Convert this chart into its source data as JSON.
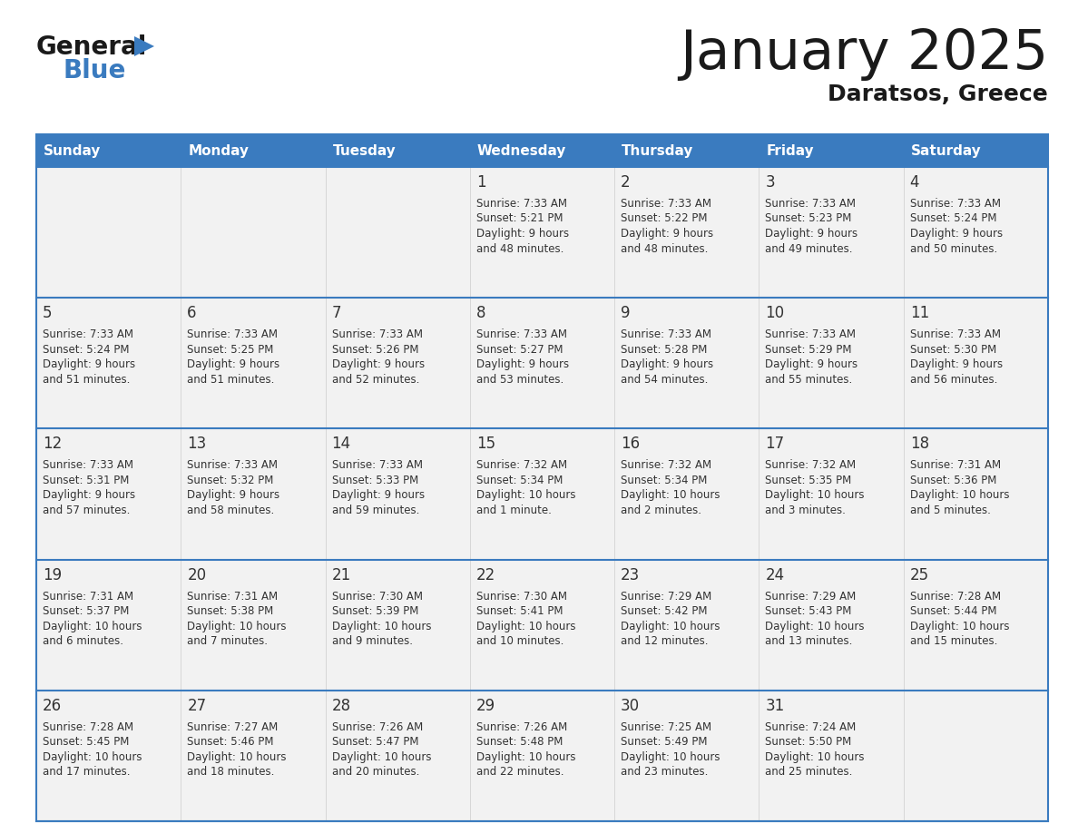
{
  "title": "January 2025",
  "subtitle": "Daratsos, Greece",
  "days_of_week": [
    "Sunday",
    "Monday",
    "Tuesday",
    "Wednesday",
    "Thursday",
    "Friday",
    "Saturday"
  ],
  "header_bg": "#3a7bbf",
  "header_text": "#ffffff",
  "row_bg": "#f2f2f2",
  "day_num_color": "#333333",
  "text_color": "#333333",
  "separator_color": "#3a7bbf",
  "cell_border_color": "#cccccc",
  "calendar_data": [
    [
      {
        "day": null,
        "sunrise": null,
        "sunset": null,
        "daylight": null
      },
      {
        "day": null,
        "sunrise": null,
        "sunset": null,
        "daylight": null
      },
      {
        "day": null,
        "sunrise": null,
        "sunset": null,
        "daylight": null
      },
      {
        "day": 1,
        "sunrise": "7:33 AM",
        "sunset": "5:21 PM",
        "daylight": "9 hours\nand 48 minutes."
      },
      {
        "day": 2,
        "sunrise": "7:33 AM",
        "sunset": "5:22 PM",
        "daylight": "9 hours\nand 48 minutes."
      },
      {
        "day": 3,
        "sunrise": "7:33 AM",
        "sunset": "5:23 PM",
        "daylight": "9 hours\nand 49 minutes."
      },
      {
        "day": 4,
        "sunrise": "7:33 AM",
        "sunset": "5:24 PM",
        "daylight": "9 hours\nand 50 minutes."
      }
    ],
    [
      {
        "day": 5,
        "sunrise": "7:33 AM",
        "sunset": "5:24 PM",
        "daylight": "9 hours\nand 51 minutes."
      },
      {
        "day": 6,
        "sunrise": "7:33 AM",
        "sunset": "5:25 PM",
        "daylight": "9 hours\nand 51 minutes."
      },
      {
        "day": 7,
        "sunrise": "7:33 AM",
        "sunset": "5:26 PM",
        "daylight": "9 hours\nand 52 minutes."
      },
      {
        "day": 8,
        "sunrise": "7:33 AM",
        "sunset": "5:27 PM",
        "daylight": "9 hours\nand 53 minutes."
      },
      {
        "day": 9,
        "sunrise": "7:33 AM",
        "sunset": "5:28 PM",
        "daylight": "9 hours\nand 54 minutes."
      },
      {
        "day": 10,
        "sunrise": "7:33 AM",
        "sunset": "5:29 PM",
        "daylight": "9 hours\nand 55 minutes."
      },
      {
        "day": 11,
        "sunrise": "7:33 AM",
        "sunset": "5:30 PM",
        "daylight": "9 hours\nand 56 minutes."
      }
    ],
    [
      {
        "day": 12,
        "sunrise": "7:33 AM",
        "sunset": "5:31 PM",
        "daylight": "9 hours\nand 57 minutes."
      },
      {
        "day": 13,
        "sunrise": "7:33 AM",
        "sunset": "5:32 PM",
        "daylight": "9 hours\nand 58 minutes."
      },
      {
        "day": 14,
        "sunrise": "7:33 AM",
        "sunset": "5:33 PM",
        "daylight": "9 hours\nand 59 minutes."
      },
      {
        "day": 15,
        "sunrise": "7:32 AM",
        "sunset": "5:34 PM",
        "daylight": "10 hours\nand 1 minute."
      },
      {
        "day": 16,
        "sunrise": "7:32 AM",
        "sunset": "5:34 PM",
        "daylight": "10 hours\nand 2 minutes."
      },
      {
        "day": 17,
        "sunrise": "7:32 AM",
        "sunset": "5:35 PM",
        "daylight": "10 hours\nand 3 minutes."
      },
      {
        "day": 18,
        "sunrise": "7:31 AM",
        "sunset": "5:36 PM",
        "daylight": "10 hours\nand 5 minutes."
      }
    ],
    [
      {
        "day": 19,
        "sunrise": "7:31 AM",
        "sunset": "5:37 PM",
        "daylight": "10 hours\nand 6 minutes."
      },
      {
        "day": 20,
        "sunrise": "7:31 AM",
        "sunset": "5:38 PM",
        "daylight": "10 hours\nand 7 minutes."
      },
      {
        "day": 21,
        "sunrise": "7:30 AM",
        "sunset": "5:39 PM",
        "daylight": "10 hours\nand 9 minutes."
      },
      {
        "day": 22,
        "sunrise": "7:30 AM",
        "sunset": "5:41 PM",
        "daylight": "10 hours\nand 10 minutes."
      },
      {
        "day": 23,
        "sunrise": "7:29 AM",
        "sunset": "5:42 PM",
        "daylight": "10 hours\nand 12 minutes."
      },
      {
        "day": 24,
        "sunrise": "7:29 AM",
        "sunset": "5:43 PM",
        "daylight": "10 hours\nand 13 minutes."
      },
      {
        "day": 25,
        "sunrise": "7:28 AM",
        "sunset": "5:44 PM",
        "daylight": "10 hours\nand 15 minutes."
      }
    ],
    [
      {
        "day": 26,
        "sunrise": "7:28 AM",
        "sunset": "5:45 PM",
        "daylight": "10 hours\nand 17 minutes."
      },
      {
        "day": 27,
        "sunrise": "7:27 AM",
        "sunset": "5:46 PM",
        "daylight": "10 hours\nand 18 minutes."
      },
      {
        "day": 28,
        "sunrise": "7:26 AM",
        "sunset": "5:47 PM",
        "daylight": "10 hours\nand 20 minutes."
      },
      {
        "day": 29,
        "sunrise": "7:26 AM",
        "sunset": "5:48 PM",
        "daylight": "10 hours\nand 22 minutes."
      },
      {
        "day": 30,
        "sunrise": "7:25 AM",
        "sunset": "5:49 PM",
        "daylight": "10 hours\nand 23 minutes."
      },
      {
        "day": 31,
        "sunrise": "7:24 AM",
        "sunset": "5:50 PM",
        "daylight": "10 hours\nand 25 minutes."
      },
      {
        "day": null,
        "sunrise": null,
        "sunset": null,
        "daylight": null
      }
    ]
  ],
  "logo_general_color": "#1a1a1a",
  "logo_blue_color": "#3a7bbf",
  "title_color": "#1a1a1a",
  "subtitle_color": "#1a1a1a"
}
